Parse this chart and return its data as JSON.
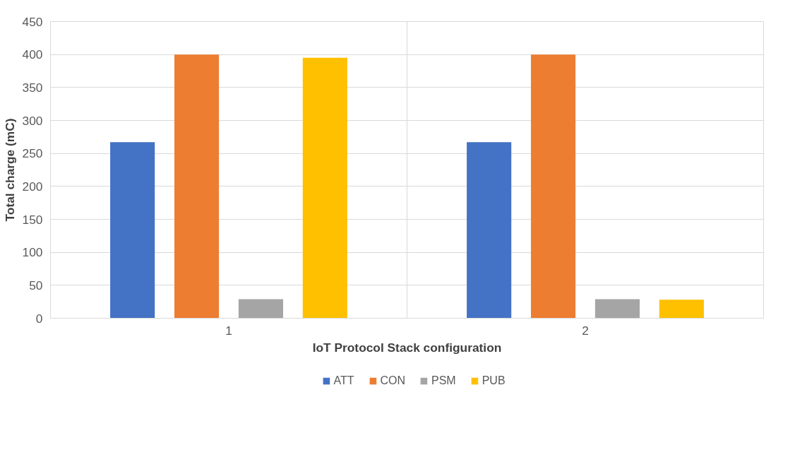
{
  "chart_data": {
    "type": "bar",
    "xlabel": "IoT Protocol Stack configuration",
    "ylabel": "Total charge (mC)",
    "categories": [
      "1",
      "2"
    ],
    "series": [
      {
        "name": "ATT",
        "color": "#4472c4",
        "values": [
          267,
          267
        ]
      },
      {
        "name": "CON",
        "color": "#ed7d31",
        "values": [
          400,
          400
        ]
      },
      {
        "name": "PSM",
        "color": "#a5a5a5",
        "values": [
          29,
          29
        ]
      },
      {
        "name": "PUB",
        "color": "#ffc000",
        "values": [
          395,
          28
        ]
      }
    ],
    "ylim": [
      0,
      450
    ],
    "yticks": [
      0,
      50,
      100,
      150,
      200,
      250,
      300,
      350,
      400,
      450
    ],
    "grid": true,
    "legend": "bottom"
  }
}
